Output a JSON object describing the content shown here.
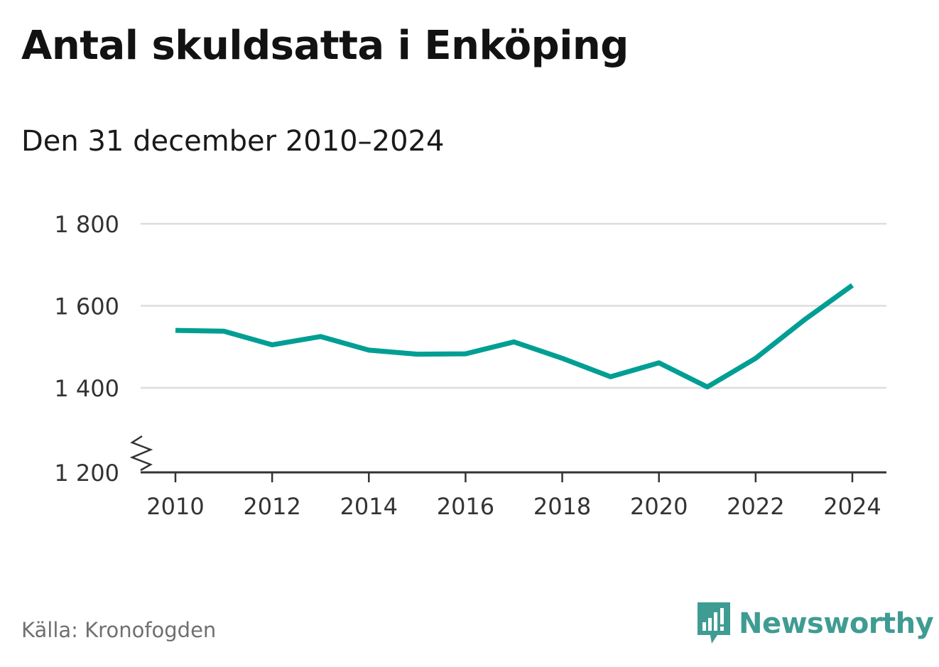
{
  "title": "Antal skuldsatta i Enköping",
  "subtitle": "Den 31 december 2010–2024",
  "source": "Källa: Kronofogden",
  "brand": {
    "name": "Newsworthy"
  },
  "colors": {
    "line": "#009e93",
    "brand": "#3f9c92",
    "grid": "#dddddd",
    "axis": "#333333"
  },
  "icons": {
    "axis_break": "axis-break-icon",
    "logo": "newsworthy-logo-icon"
  },
  "chart_data": {
    "type": "line",
    "title": "Antal skuldsatta i Enköping",
    "subtitle": "Den 31 december 2010–2024",
    "xlabel": "",
    "ylabel": "",
    "x": [
      2010,
      2011,
      2012,
      2013,
      2014,
      2015,
      2016,
      2017,
      2018,
      2019,
      2020,
      2021,
      2022,
      2023,
      2024
    ],
    "series": [
      {
        "name": "Antal skuldsatta",
        "values": [
          1540,
          1538,
          1505,
          1525,
          1492,
          1482,
          1483,
          1512,
          1472,
          1427,
          1461,
          1402,
          1472,
          1565,
          1650
        ]
      }
    ],
    "ylim": [
      1200,
      1800
    ],
    "yticks": [
      1200,
      1400,
      1600,
      1800
    ],
    "ytick_labels": [
      "1 200",
      "1 400",
      "1 600",
      "1 800"
    ],
    "xticks": [
      2010,
      2012,
      2014,
      2016,
      2018,
      2020,
      2022,
      2024
    ],
    "xtick_labels": [
      "2010",
      "2012",
      "2014",
      "2016",
      "2018",
      "2020",
      "2022",
      "2024"
    ],
    "y_axis_break": true,
    "grid": true,
    "legend": "none"
  }
}
